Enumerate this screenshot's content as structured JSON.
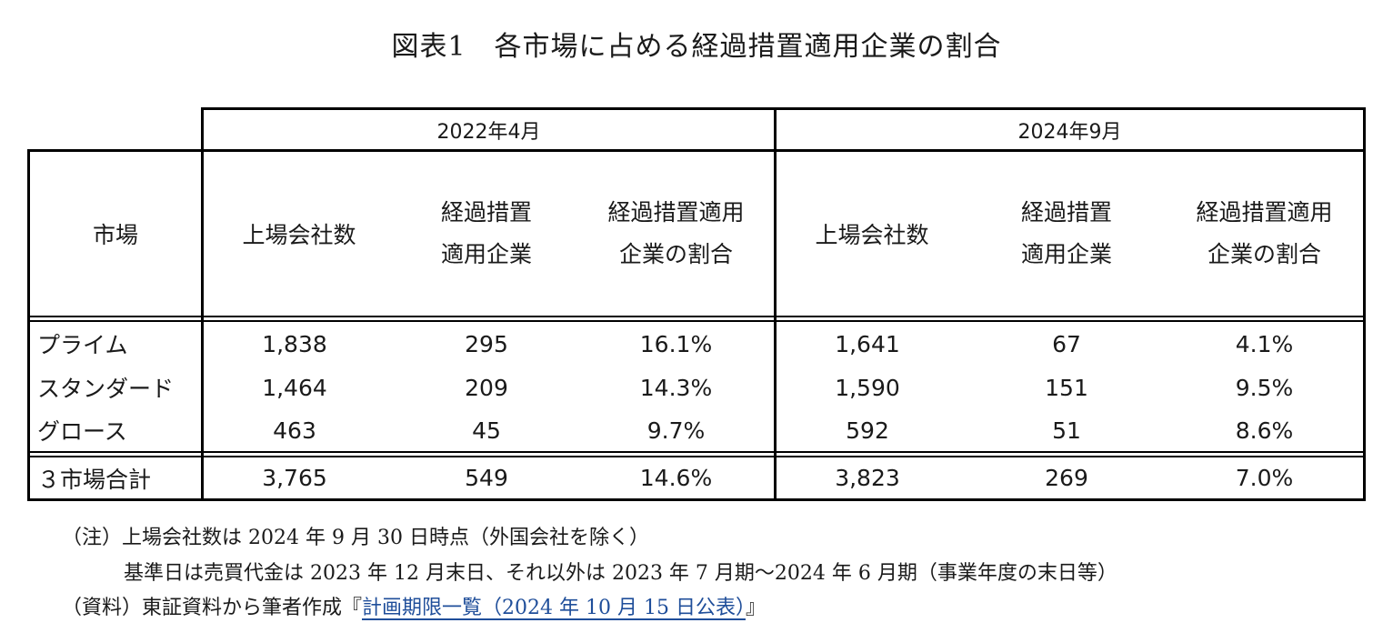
{
  "title": "図表1　各市場に占める経過措置適用企業の割合",
  "table": {
    "periods": [
      "2022年4月",
      "2024年9月"
    ],
    "market_header": "市場",
    "col_headers": [
      {
        "line1": "上場会社数",
        "line2": ""
      },
      {
        "line1": "経過措置",
        "line2": "適用企業"
      },
      {
        "line1": "経過措置適用",
        "line2": "企業の割合"
      }
    ],
    "rows": [
      {
        "market": "プライム",
        "values": [
          "1,838",
          "295",
          "16.1%",
          "1,641",
          "67",
          "4.1%"
        ]
      },
      {
        "market": "スタンダード",
        "values": [
          "1,464",
          "209",
          "14.3%",
          "1,590",
          "151",
          "9.5%"
        ]
      },
      {
        "market": "グロース",
        "values": [
          "463",
          "45",
          "9.7%",
          "592",
          "51",
          "8.6%"
        ]
      }
    ],
    "total": {
      "market": "３市場合計",
      "values": [
        "3,765",
        "549",
        "14.6%",
        "3,823",
        "269",
        "7.0%"
      ]
    }
  },
  "notes": {
    "line1": "（注）上場会社数は 2024 年 9 月 30 日時点（外国会社を除く）",
    "line2": "基準日は売買代金は 2023 年 12 月末日、それ以外は 2023 年 7 月期～2024 年 6 月期（事業年度の末日等）",
    "source_prefix": "（資料）東証資料から筆者作成『",
    "source_link": "計画期限一覧（2024 年 10 月 15 日公表）",
    "source_suffix": "』"
  }
}
